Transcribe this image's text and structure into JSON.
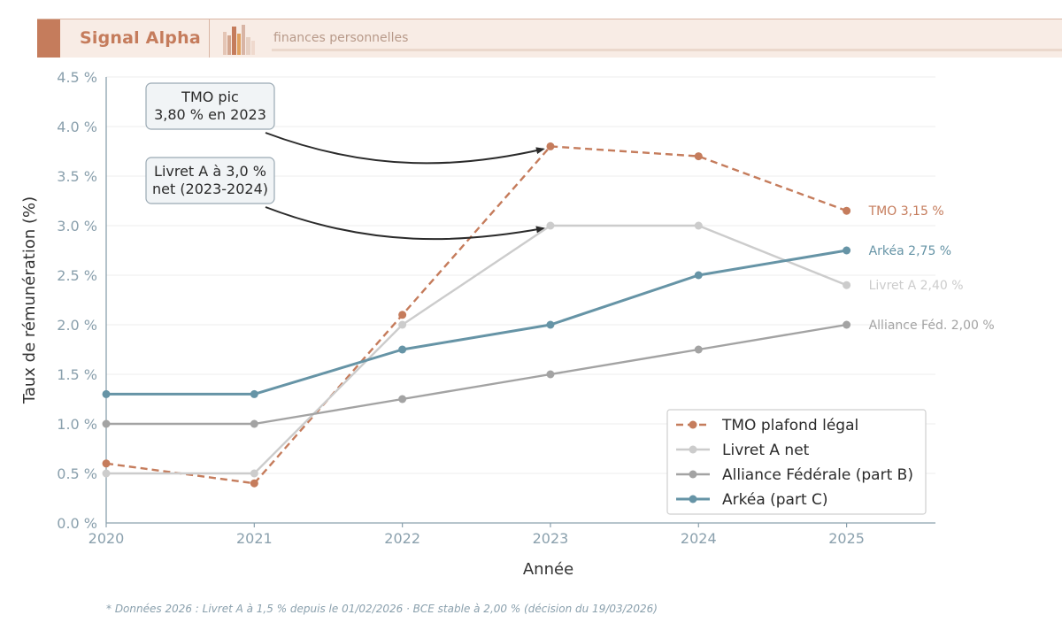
{
  "header": {
    "brand": "Signal Alpha",
    "tagline": "finances personnelles",
    "logo_icon": "bar-building-logo-icon"
  },
  "colors": {
    "accent": "#c57c5c",
    "tmo": "#c57c5c",
    "livret": "#cccccc",
    "alliance": "#a3a3a3",
    "arkea": "#6694a6",
    "axis": "#8aa0ad"
  },
  "chart_data": {
    "type": "line",
    "title": "",
    "xlabel": "Année",
    "ylabel": "Taux de rémunération (%)",
    "x": [
      2020,
      2021,
      2022,
      2023,
      2024,
      2025
    ],
    "xlim": [
      2020,
      2025.6
    ],
    "ylim": [
      0,
      4.5
    ],
    "yticks": [
      0,
      0.5,
      1.0,
      1.5,
      2.0,
      2.5,
      3.0,
      3.5,
      4.0,
      4.5
    ],
    "ytick_labels": [
      "0.0 %",
      "0.5 %",
      "1.0 %",
      "1.5 %",
      "2.0 %",
      "2.5 %",
      "3.0 %",
      "3.5 %",
      "4.0 %",
      "4.5 %"
    ],
    "xtick_labels": [
      "2020",
      "2021",
      "2022",
      "2023",
      "2024",
      "2025"
    ],
    "grid": "horizontal",
    "legend_position": "bottom-right",
    "series": [
      {
        "name": "TMO plafond légal",
        "values": [
          0.6,
          0.4,
          2.1,
          3.8,
          3.7,
          3.15
        ],
        "color": "#c57c5c",
        "style": "dashed",
        "end_label": "TMO 3,15 %"
      },
      {
        "name": "Livret A net",
        "values": [
          0.5,
          0.5,
          2.0,
          3.0,
          3.0,
          2.4
        ],
        "color": "#cccccc",
        "style": "solid",
        "end_label": "Livret A 2,40 %"
      },
      {
        "name": "Alliance Fédérale (part B)",
        "values": [
          1.0,
          1.0,
          1.25,
          1.5,
          1.75,
          2.0
        ],
        "color": "#a3a3a3",
        "style": "solid",
        "end_label": "Alliance Féd. 2,00 %"
      },
      {
        "name": "Arkéa (part C)",
        "values": [
          1.3,
          1.3,
          1.75,
          2.0,
          2.5,
          2.75
        ],
        "color": "#6694a6",
        "style": "solid-bold",
        "end_label": "Arkéa 2,75 %"
      }
    ],
    "annotations": [
      {
        "lines": [
          "TMO pic",
          "3,80 % en 2023"
        ],
        "target": [
          2023,
          3.8
        ]
      },
      {
        "lines": [
          "Livret A à 3,0 %",
          "net (2023-2024)"
        ],
        "target": [
          2023,
          3.0
        ]
      }
    ]
  },
  "footnote": "* Données 2026 : Livret A à 1,5 % depuis le 01/02/2026 · BCE stable à 2,00 % (décision du 19/03/2026)"
}
